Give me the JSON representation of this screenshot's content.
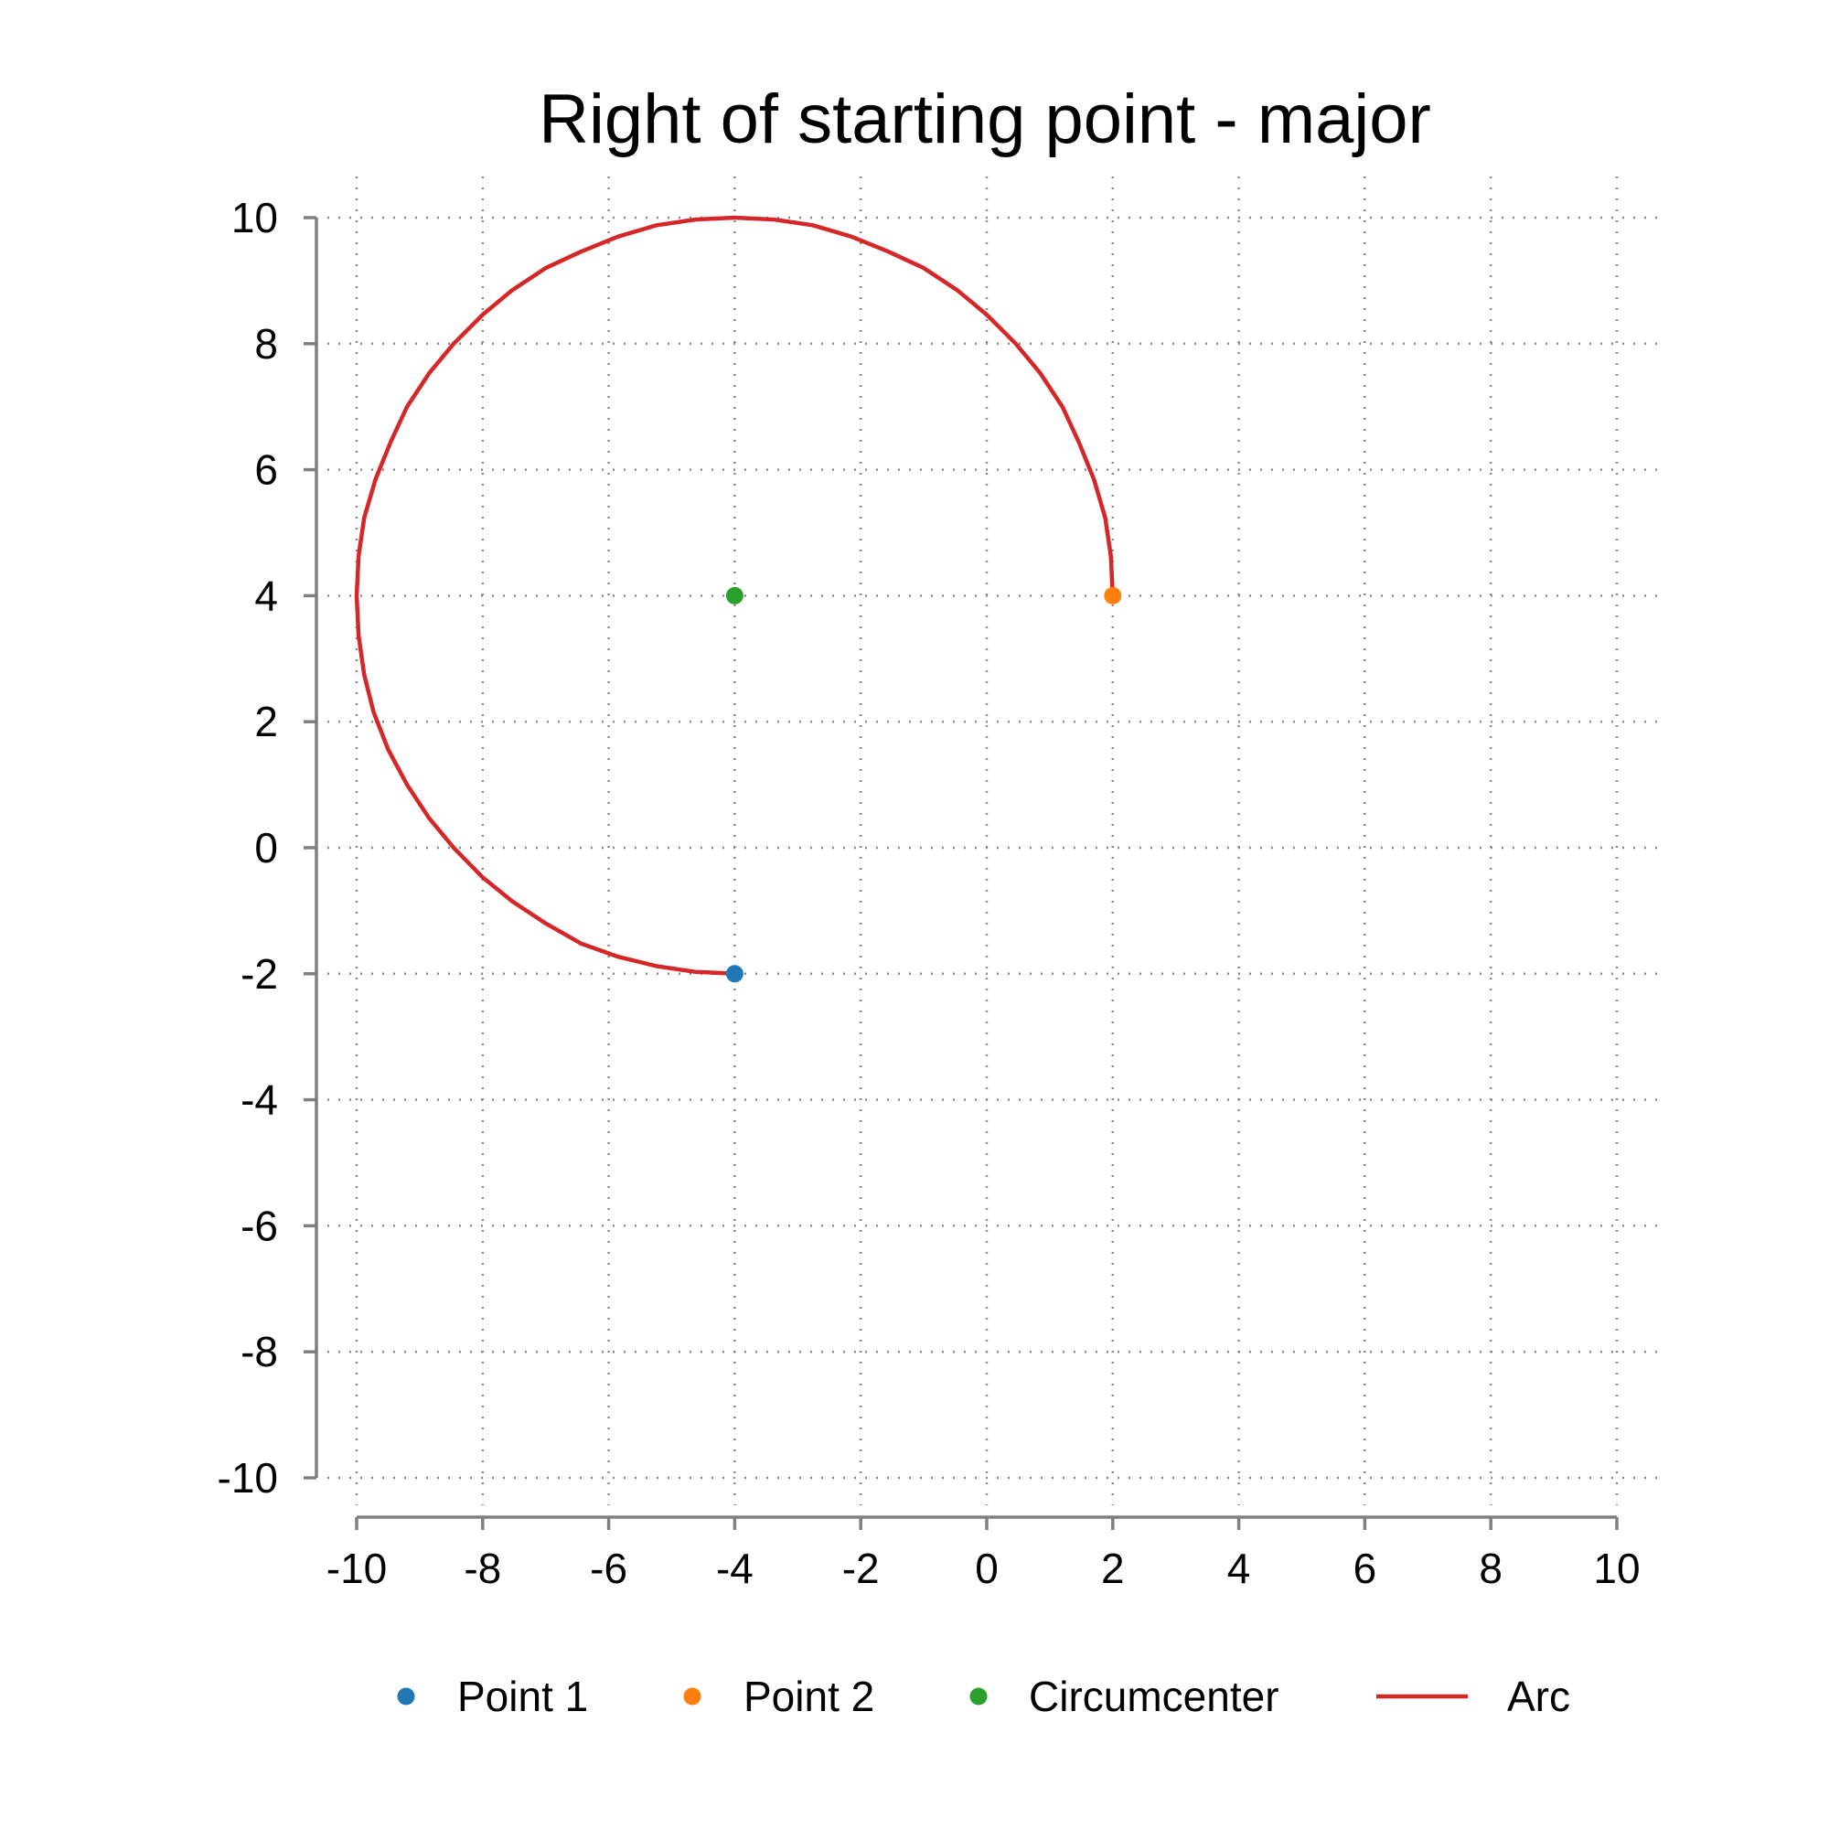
{
  "chart_data": {
    "type": "scatter",
    "title": "Right of starting point - major",
    "xlabel": "",
    "ylabel": "",
    "xlim": [
      -10,
      10
    ],
    "ylim": [
      -10,
      10
    ],
    "x_ticks": [
      -10,
      -8,
      -6,
      -4,
      -2,
      0,
      2,
      4,
      6,
      8,
      10
    ],
    "y_ticks": [
      -10,
      -8,
      -6,
      -4,
      -2,
      0,
      2,
      4,
      6,
      8,
      10
    ],
    "x_tick_labels": [
      "-10",
      "-8",
      "-6",
      "-4",
      "-2",
      "0",
      "2",
      "4",
      "6",
      "8",
      "10"
    ],
    "y_tick_labels": [
      "-10",
      "-8",
      "-6",
      "-4",
      "-2",
      "0",
      "2",
      "4",
      "6",
      "8",
      "10"
    ],
    "grid": true,
    "legend_position": "bottom",
    "series": [
      {
        "name": "Point 1",
        "kind": "point",
        "color": "#1f77b4",
        "points": [
          [
            -4,
            -2
          ]
        ]
      },
      {
        "name": "Point 2",
        "kind": "point",
        "color": "#ff7f0e",
        "points": [
          [
            2,
            4
          ]
        ]
      },
      {
        "name": "Circumcenter",
        "kind": "point",
        "color": "#2ca02c",
        "points": [
          [
            -4,
            4
          ]
        ]
      },
      {
        "name": "Arc",
        "kind": "line",
        "color": "#d62728",
        "points": [
          [
            -4.0,
            -2.0
          ],
          [
            -4.63,
            -1.97
          ],
          [
            -5.24,
            -1.88
          ],
          [
            -5.85,
            -1.73
          ],
          [
            -6.44,
            -1.52
          ],
          [
            -7.0,
            -1.2
          ],
          [
            -7.53,
            -0.85
          ],
          [
            -8.0,
            -0.47
          ],
          [
            -8.46,
            0.0
          ],
          [
            -8.85,
            0.47
          ],
          [
            -9.2,
            1.0
          ],
          [
            -9.5,
            1.56
          ],
          [
            -9.73,
            2.15
          ],
          [
            -9.88,
            2.74
          ],
          [
            -9.97,
            3.37
          ],
          [
            -10.0,
            4.0
          ],
          [
            -9.97,
            4.63
          ],
          [
            -9.88,
            5.24
          ],
          [
            -9.7,
            5.85
          ],
          [
            -9.46,
            6.44
          ],
          [
            -9.2,
            7.0
          ],
          [
            -8.85,
            7.53
          ],
          [
            -8.46,
            8.0
          ],
          [
            -8.0,
            8.46
          ],
          [
            -7.53,
            8.85
          ],
          [
            -7.0,
            9.2
          ],
          [
            -6.44,
            9.46
          ],
          [
            -5.85,
            9.7
          ],
          [
            -5.24,
            9.88
          ],
          [
            -4.63,
            9.97
          ],
          [
            -4.0,
            10.0
          ],
          [
            -3.37,
            9.97
          ],
          [
            -2.76,
            9.88
          ],
          [
            -2.15,
            9.7
          ],
          [
            -1.56,
            9.46
          ],
          [
            -1.0,
            9.2
          ],
          [
            -0.47,
            8.85
          ],
          [
            0.0,
            8.46
          ],
          [
            0.46,
            8.0
          ],
          [
            0.85,
            7.53
          ],
          [
            1.2,
            7.0
          ],
          [
            1.46,
            6.44
          ],
          [
            1.7,
            5.85
          ],
          [
            1.88,
            5.24
          ],
          [
            1.97,
            4.63
          ],
          [
            2.0,
            4.0
          ]
        ]
      }
    ]
  }
}
